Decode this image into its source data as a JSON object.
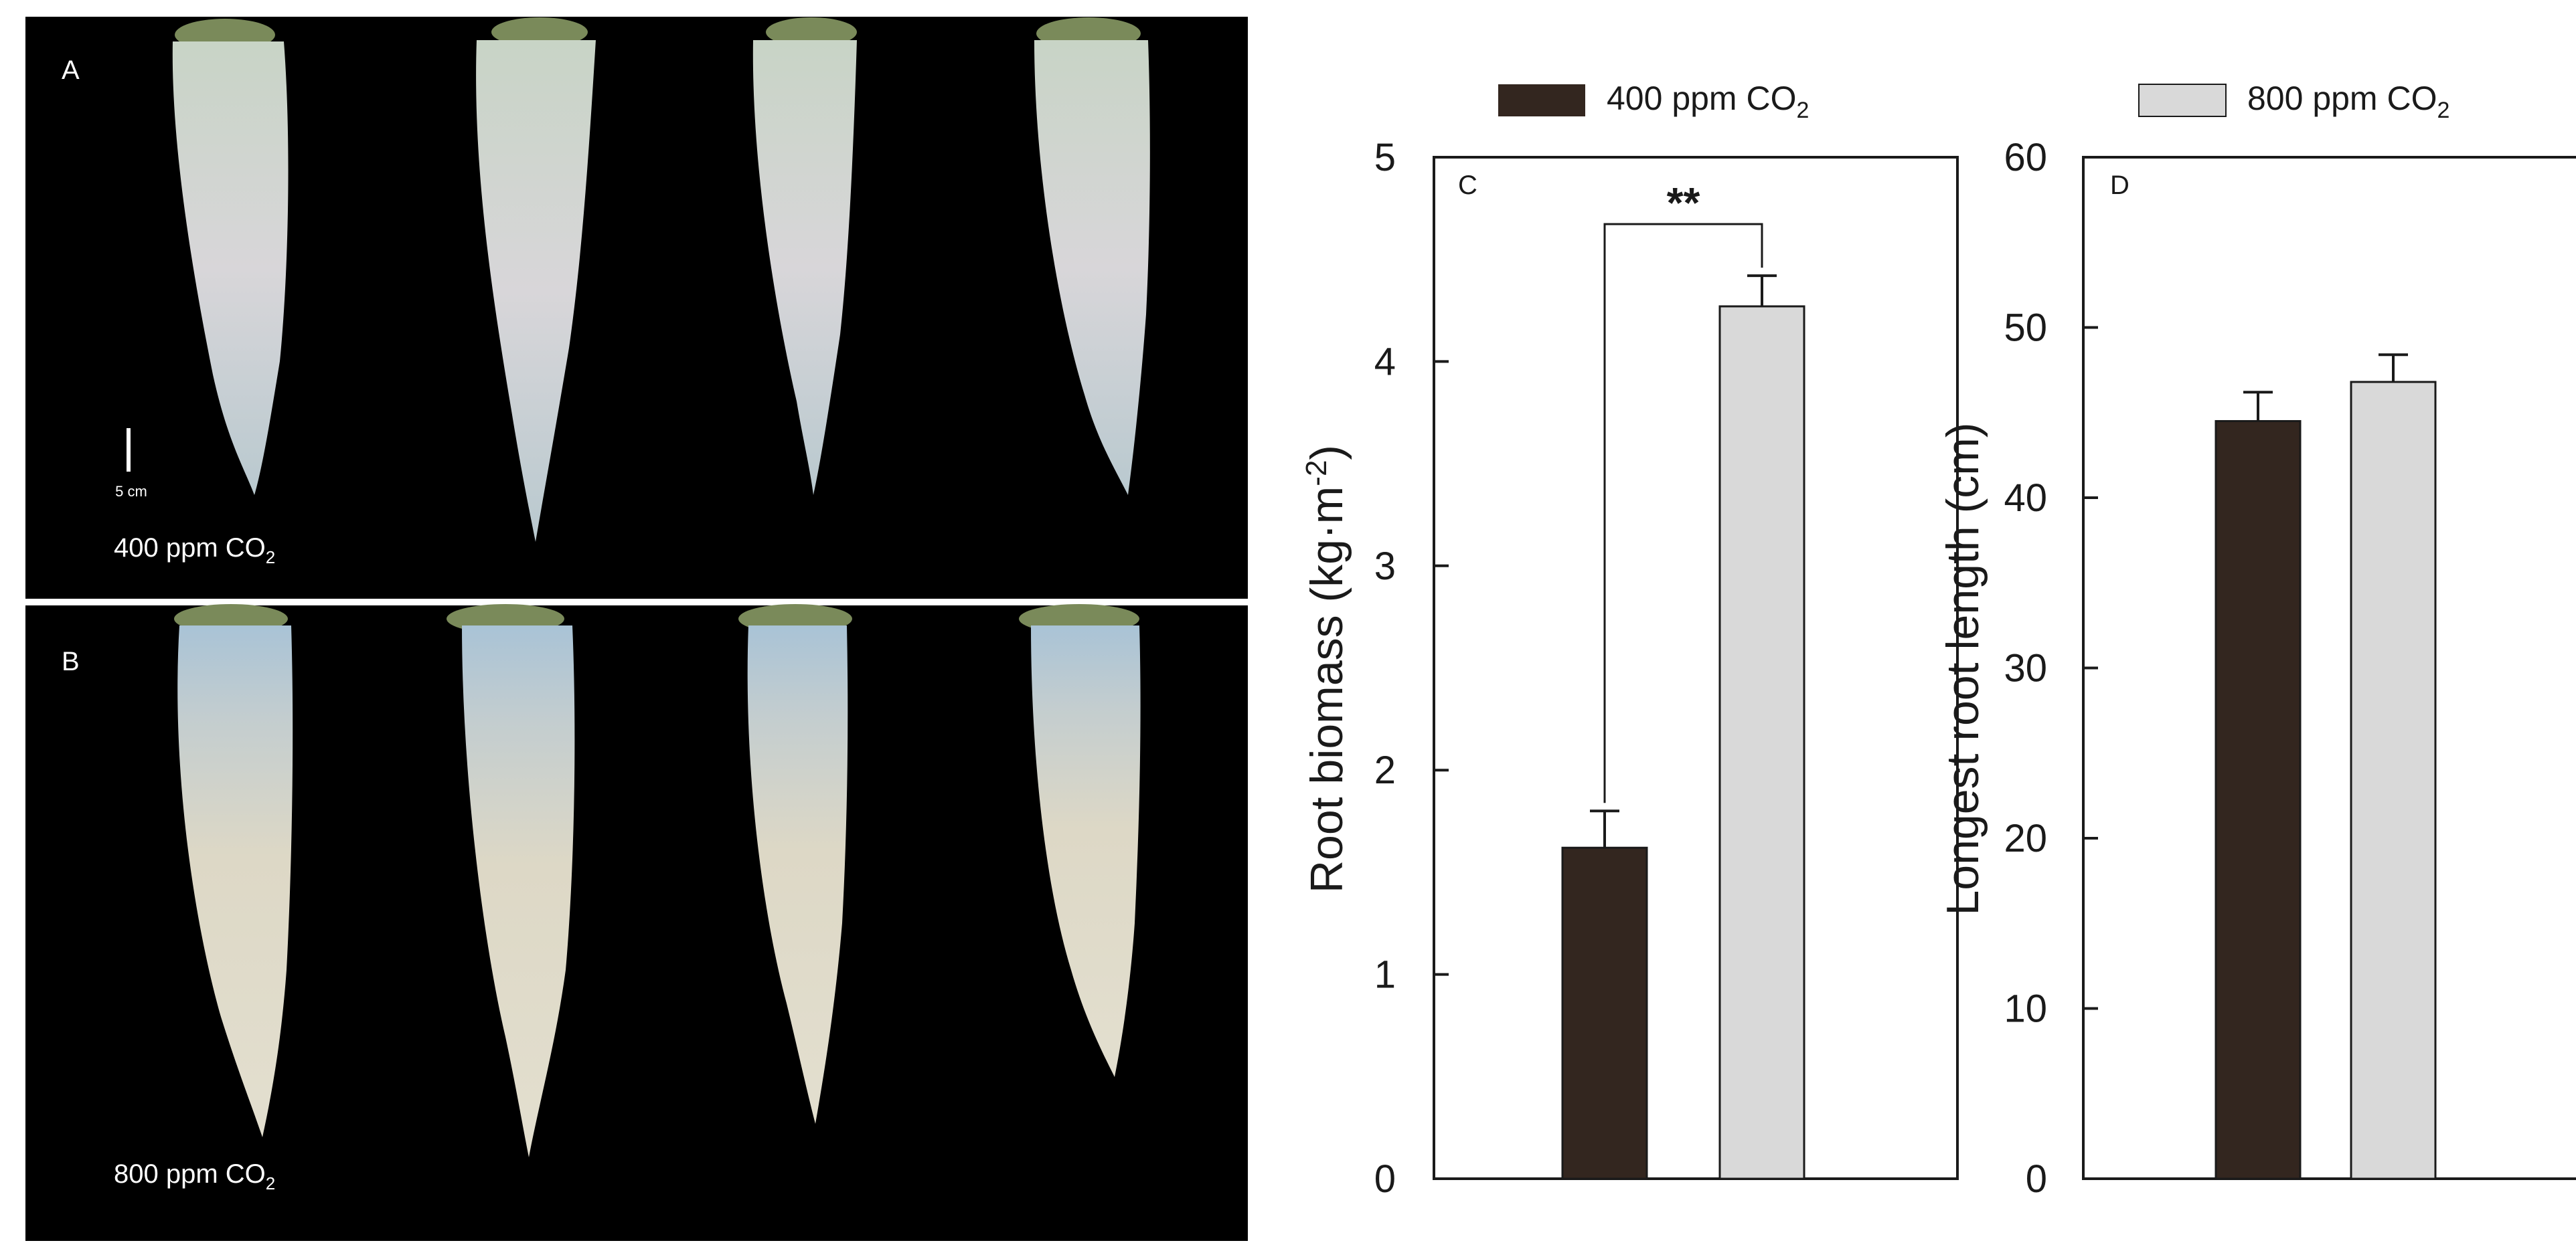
{
  "panels": {
    "a": {
      "letter": "A",
      "label": "400 ppm CO",
      "label_sub": "2",
      "scale_label": "5 cm"
    },
    "b": {
      "letter": "B",
      "label": "800 ppm CO",
      "label_sub": "2"
    }
  },
  "legend": [
    {
      "text": "400 ppm CO",
      "sub": "2",
      "color": "#33261f"
    },
    {
      "text": "800 ppm CO",
      "sub": "2",
      "color": "#d9d9d9"
    }
  ],
  "chart_data": [
    {
      "type": "bar",
      "panel": "C",
      "title": "",
      "ylabel_pre": "Root biomass (kg·m",
      "ylabel_sup": "-2",
      "ylabel_post": ")",
      "xlabel": "",
      "ylim": [
        0,
        5
      ],
      "yticks": [
        "0",
        "1",
        "2",
        "3",
        "4",
        "5"
      ],
      "categories": [
        "400 ppm CO2",
        "800 ppm CO2"
      ],
      "values": [
        1.62,
        4.27
      ],
      "errors": [
        0.18,
        0.15
      ],
      "colors": [
        "#33261f",
        "#d9d9d9"
      ],
      "significance": "**"
    },
    {
      "type": "bar",
      "panel": "D",
      "title": "",
      "ylabel": "Longest root length (cm)",
      "xlabel": "",
      "ylim": [
        0,
        60
      ],
      "yticks": [
        "0",
        "10",
        "20",
        "30",
        "40",
        "50",
        "60"
      ],
      "categories": [
        "400 ppm CO2",
        "800 ppm CO2"
      ],
      "values": [
        44.5,
        46.8
      ],
      "errors": [
        1.7,
        1.6
      ],
      "colors": [
        "#33261f",
        "#d9d9d9"
      ]
    }
  ]
}
